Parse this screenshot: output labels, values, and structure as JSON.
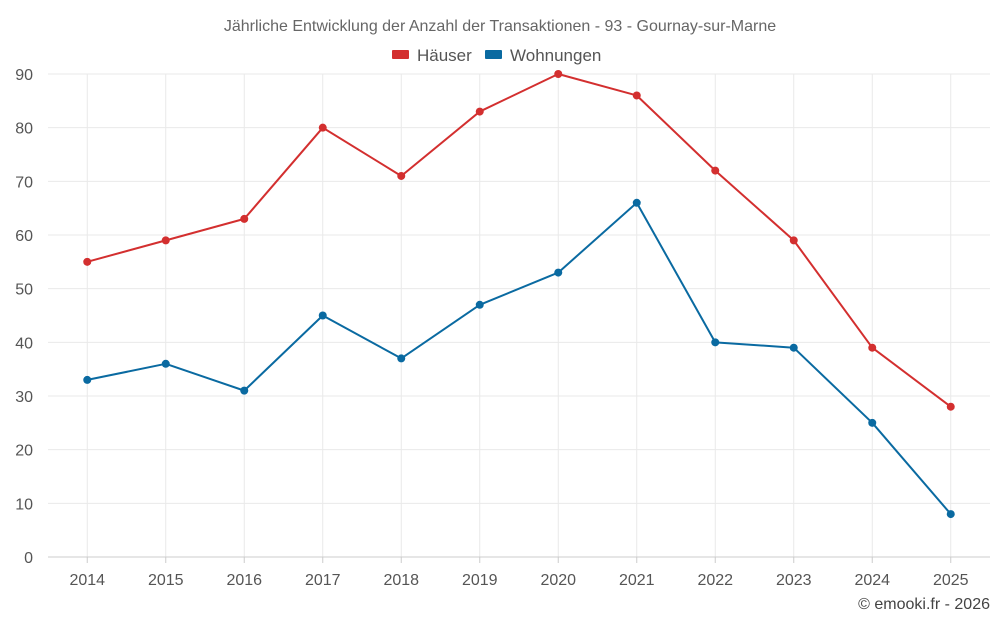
{
  "chart_data": {
    "type": "line",
    "title": "Jährliche Entwicklung der Anzahl der Transaktionen - 93 - Gournay-sur-Marne",
    "categories": [
      "2014",
      "2015",
      "2016",
      "2017",
      "2018",
      "2019",
      "2020",
      "2021",
      "2022",
      "2023",
      "2024",
      "2025"
    ],
    "series": [
      {
        "name": "Häuser",
        "color": "#d32f2f",
        "values": [
          55,
          59,
          63,
          80,
          71,
          83,
          90,
          86,
          72,
          59,
          39,
          28
        ]
      },
      {
        "name": "Wohnungen",
        "color": "#0a6aa1",
        "values": [
          33,
          36,
          31,
          45,
          37,
          47,
          53,
          66,
          40,
          39,
          25,
          8
        ]
      }
    ],
    "ylim": [
      0,
      90
    ],
    "yticks": [
      "0",
      "10",
      "20",
      "30",
      "40",
      "50",
      "60",
      "70",
      "80",
      "90"
    ],
    "xlabel": "",
    "ylabel": "",
    "grid": true,
    "legend": "top-center"
  },
  "credit": "© emooki.fr - 2026"
}
